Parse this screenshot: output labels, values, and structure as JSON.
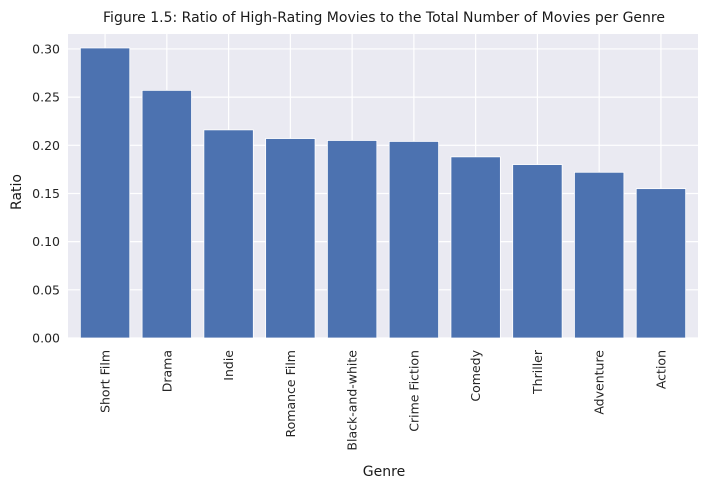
{
  "chart_data": {
    "type": "bar",
    "title": "Figure 1.5: Ratio of High-Rating Movies to the Total Number of Movies per Genre",
    "xlabel": "Genre",
    "ylabel": "Ratio",
    "categories": [
      "Short Film",
      "Drama",
      "Indie",
      "Romance Film",
      "Black-and-white",
      "Crime Fiction",
      "Comedy",
      "Thriller",
      "Adventure",
      "Action"
    ],
    "values": [
      0.301,
      0.257,
      0.216,
      0.207,
      0.205,
      0.204,
      0.188,
      0.18,
      0.172,
      0.155
    ],
    "ylim": [
      0,
      0.3155
    ],
    "yticks": [
      "0.00",
      "0.05",
      "0.10",
      "0.15",
      "0.20",
      "0.25",
      "0.30"
    ],
    "grid": true,
    "colors": {
      "bar": "#4c72b0",
      "plot_background": "#eaeaf2",
      "grid": "#ffffff"
    }
  }
}
